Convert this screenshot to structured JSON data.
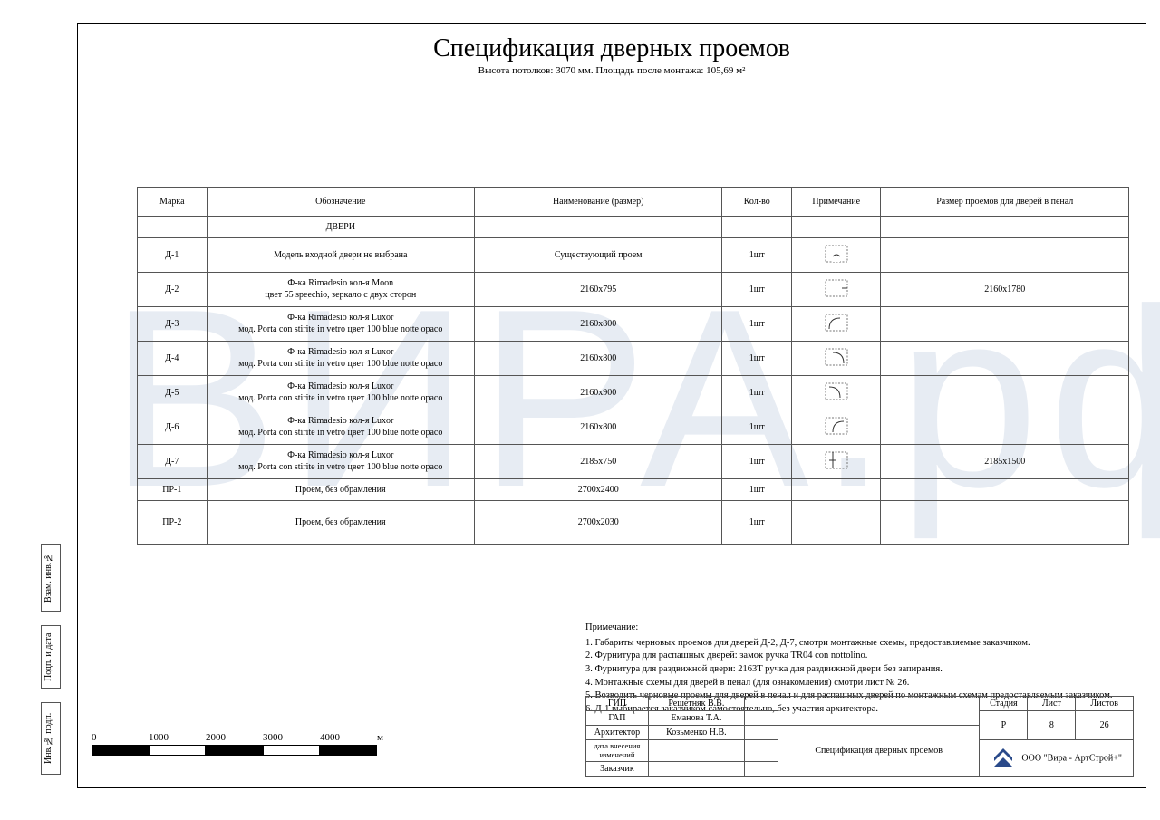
{
  "title": "Спецификация дверных проемов",
  "subtitle": "Высота потолков: 3070 мм. Площадь после монтажа: 105,69 м²",
  "watermark": "ВИРА.рф",
  "columns": {
    "mark": "Марка",
    "designation": "Обозначение",
    "name": "Наименование (размер)",
    "qty": "Кол-во",
    "note": "Примечание",
    "size": "Размер проемов для дверей в пенал"
  },
  "section_header": "ДВЕРИ",
  "rows": [
    {
      "mark": "Д-1",
      "desig1": "Модель входной двери не выбрана",
      "desig2": "",
      "name": "Существующий проем",
      "qty": "1шт",
      "icon": "d1",
      "size": ""
    },
    {
      "mark": "Д-2",
      "desig1": "Ф-ка Rimadesio кол-я Moon",
      "desig2": "цвет 55 speechio, зеркало с двух сторон",
      "name": "2160x795",
      "qty": "1шт",
      "icon": "d2",
      "size": "2160x1780"
    },
    {
      "mark": "Д-3",
      "desig1": "Ф-ка Rimadesio кол-я Luxor",
      "desig2": "мод. Porta con stirite in vetro цвет 100 blue notte opaco",
      "name": "2160x800",
      "qty": "1шт",
      "icon": "d3",
      "size": ""
    },
    {
      "mark": "Д-4",
      "desig1": "Ф-ка Rimadesio кол-я Luxor",
      "desig2": "мод. Porta con stirite in vetro цвет 100 blue notte opaco",
      "name": "2160x800",
      "qty": "1шт",
      "icon": "d4",
      "size": ""
    },
    {
      "mark": "Д-5",
      "desig1": "Ф-ка Rimadesio кол-я Luxor",
      "desig2": "мод. Porta con stirite in vetro цвет 100 blue notte opaco",
      "name": "2160x900",
      "qty": "1шт",
      "icon": "d5",
      "size": ""
    },
    {
      "mark": "Д-6",
      "desig1": "Ф-ка Rimadesio кол-я Luxor",
      "desig2": "мод. Porta con stirite in vetro цвет 100 blue notte opaco",
      "name": "2160x800",
      "qty": "1шт",
      "icon": "d6",
      "size": ""
    },
    {
      "mark": "Д-7",
      "desig1": "Ф-ка Rimadesio кол-я Luxor",
      "desig2": "мод. Porta con stirite in vetro цвет 100 blue notte opaco",
      "name": "2185x750",
      "qty": "1шт",
      "icon": "d7",
      "size": "2185x1500"
    },
    {
      "mark": "ПР-1",
      "desig1": "Проем, без обрамления",
      "desig2": "",
      "name": "2700x2400",
      "qty": "1шт",
      "icon": "",
      "size": ""
    },
    {
      "mark": "ПР-2",
      "desig1": "Проем, без обрамления",
      "desig2": "",
      "name": "2700x2030",
      "qty": "1шт",
      "icon": "",
      "size": ""
    }
  ],
  "notes_title": "Примечание:",
  "notes": [
    "1. Габариты черновых проемов для дверей Д-2, Д-7, смотри монтажные схемы, предоставляемые заказчиком.",
    "2. Фурнитура для распашных дверей: замок ручка TR04 con nottolino.",
    "3. Фурнитура для раздвижной двери: 2163T ручка для раздвижной двери без запирания.",
    "4. Монтажные схемы для дверей в пенал (для ознакомления) смотри лист № 26.",
    "5. Возводить черновые проемы для дверей в пенал и для распашных дверей по монтажным схемам предоставляемым заказчиком.",
    "6. Д-1 выбирается заказчиком самостоятельно, без участия архитектора."
  ],
  "title_block": {
    "gip_role": "ГИП",
    "gip_name": "Решетняк В.В.",
    "gap_role": "ГАП",
    "gap_name": "Еманова Т.А.",
    "arch_role": "Архитектор",
    "arch_name": "Козьменко Н.В.",
    "date_role": "дата внесения изменений",
    "customer_role": "Заказчик",
    "center_text": "Спецификация дверных проемов",
    "stage_label": "Стадия",
    "sheet_label": "Лист",
    "sheets_label": "Листов",
    "stage": "Р",
    "sheet": "8",
    "sheets": "26",
    "company": "ООО \"Вира - АртСтрой+\""
  },
  "scale": {
    "v0": "0",
    "v1": "1000",
    "v2": "2000",
    "v3": "3000",
    "v4": "4000",
    "unit": "м"
  },
  "side": {
    "s1": "Взам. инв.№",
    "s2": "Подп. и дата",
    "s3": "Инв.№ подп."
  },
  "colors": {
    "border": "#555555",
    "watermark": "rgba(185,200,220,0.35)",
    "logo": "#2a4a8a",
    "hatch": "#777777"
  }
}
